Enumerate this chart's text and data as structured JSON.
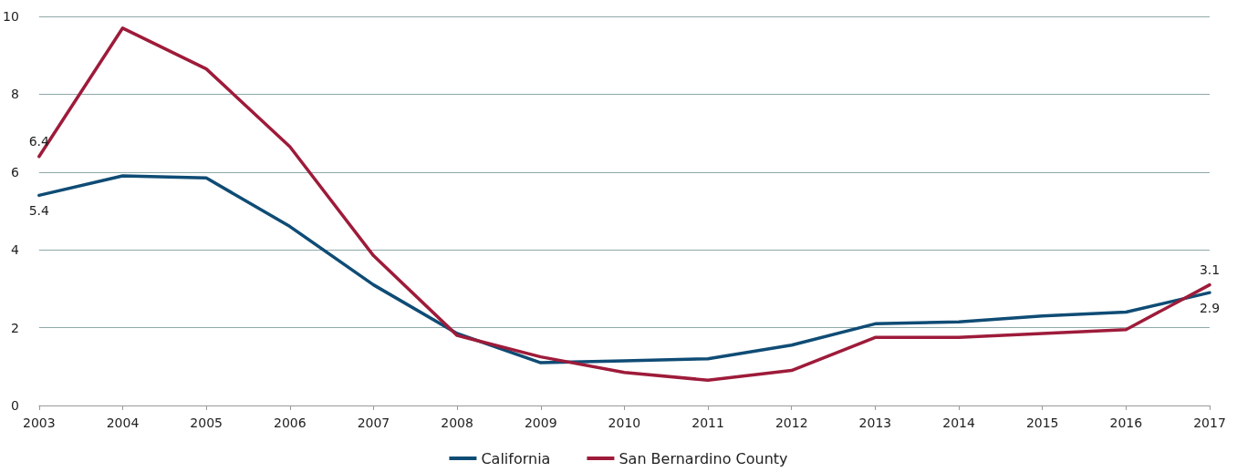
{
  "chart_data": {
    "type": "line",
    "categories": [
      "2003",
      "2004",
      "2005",
      "2006",
      "2007",
      "2008",
      "2009",
      "2010",
      "2011",
      "2012",
      "2013",
      "2014",
      "2015",
      "2016",
      "2017"
    ],
    "series": [
      {
        "name": "California",
        "color": "#0f4c75",
        "values": [
          5.4,
          5.9,
          5.85,
          4.6,
          3.1,
          1.85,
          1.1,
          1.15,
          1.2,
          1.55,
          2.1,
          2.15,
          2.3,
          2.4,
          2.9
        ],
        "value_labels": [
          "5.4",
          null,
          null,
          null,
          null,
          null,
          null,
          null,
          null,
          null,
          null,
          null,
          null,
          null,
          "2.9"
        ]
      },
      {
        "name": "San Bernardino County",
        "color": "#9e1b3a",
        "values": [
          6.4,
          9.7,
          8.65,
          6.65,
          3.85,
          1.8,
          1.25,
          0.85,
          0.65,
          0.9,
          1.75,
          1.75,
          1.85,
          1.95,
          3.1
        ],
        "value_labels": [
          "6.4",
          null,
          null,
          null,
          null,
          null,
          null,
          null,
          null,
          null,
          null,
          null,
          null,
          null,
          "3.1"
        ]
      }
    ],
    "ylim": [
      0,
      10
    ],
    "yticks": [
      0,
      2,
      4,
      6,
      8,
      10
    ],
    "grid": "y",
    "legend": "bottom",
    "marker": "none",
    "line_style": "solid"
  }
}
